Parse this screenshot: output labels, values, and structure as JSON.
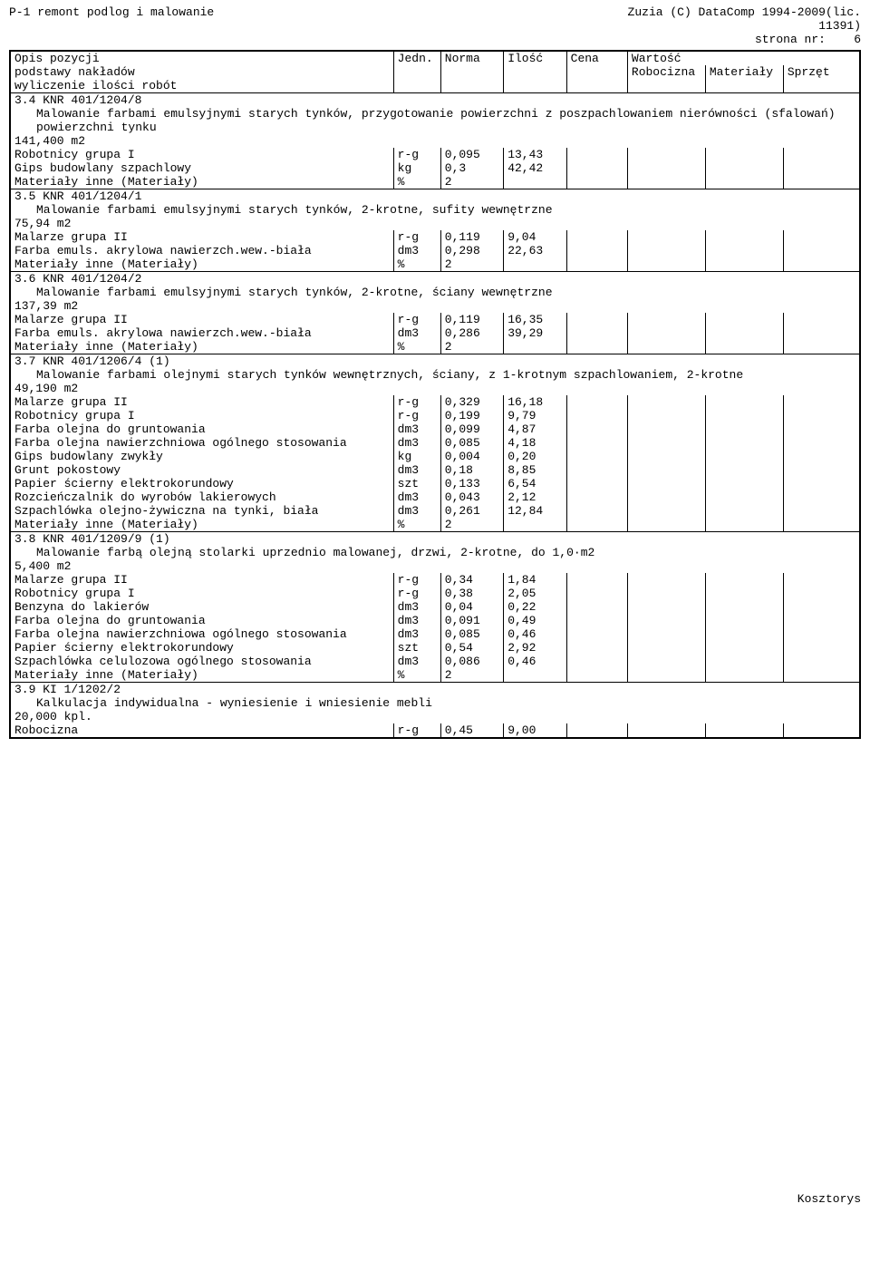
{
  "header": {
    "left": "P-1 remont podlog i malowanie",
    "right1": "Zuzia (C) DataComp 1994-2009(lic.",
    "right2": "11391)",
    "right3_label": "strona nr:",
    "right3_value": "6"
  },
  "columns": {
    "opis1": "Opis pozycji",
    "opis2": "podstawy nakładów",
    "opis3": "wyliczenie ilości robót",
    "jedn": "Jedn.",
    "norma": "Norma",
    "ilosc": "Ilość",
    "cena": "Cena",
    "wartosc": "Wartość",
    "robocizna": "Robocizna",
    "materialy": "Materiały",
    "sprzet": "Sprzęt"
  },
  "sections": [
    {
      "code": "3.4 KNR 401/1204/8",
      "desc": "Malowanie farbami emulsyjnymi starych tynków, przygotowanie powierzchni z poszpachlowaniem nierówności (sfalowań) powierzchni tynku",
      "area": "141,400 m2",
      "rows": [
        {
          "name": "Robotnicy grupa I",
          "unit": "r-g",
          "norma": "0,095",
          "ilosc": "13,43"
        },
        {
          "name": "Gips budowlany szpachlowy",
          "unit": "kg",
          "norma": "0,3",
          "ilosc": "42,42"
        },
        {
          "name": "Materiały inne (Materiały)",
          "unit": "%",
          "norma": "2",
          "ilosc": ""
        }
      ]
    },
    {
      "code": "3.5 KNR 401/1204/1",
      "desc": "Malowanie farbami emulsyjnymi starych tynków, 2-krotne, sufity wewnętrzne",
      "area": "75,94 m2",
      "rows": [
        {
          "name": "Malarze grupa II",
          "unit": "r-g",
          "norma": "0,119",
          "ilosc": "9,04"
        },
        {
          "name": "Farba emuls. akrylowa nawierzch.wew.-biała",
          "unit": "dm3",
          "norma": "0,298",
          "ilosc": "22,63"
        },
        {
          "name": "Materiały inne (Materiały)",
          "unit": "%",
          "norma": "2",
          "ilosc": ""
        }
      ]
    },
    {
      "code": "3.6 KNR 401/1204/2",
      "desc": "Malowanie farbami emulsyjnymi starych tynków, 2-krotne, ściany wewnętrzne",
      "area": "137,39 m2",
      "rows": [
        {
          "name": "Malarze grupa II",
          "unit": "r-g",
          "norma": "0,119",
          "ilosc": "16,35"
        },
        {
          "name": "Farba emuls. akrylowa nawierzch.wew.-biała",
          "unit": "dm3",
          "norma": "0,286",
          "ilosc": "39,29"
        },
        {
          "name": "Materiały inne (Materiały)",
          "unit": "%",
          "norma": "2",
          "ilosc": ""
        }
      ]
    },
    {
      "code": "3.7 KNR 401/1206/4 (1)",
      "desc": "Malowanie farbami olejnymi starych tynków wewnętrznych, ściany, z 1-krotnym szpachlowaniem, 2-krotne",
      "area": "49,190 m2",
      "rows": [
        {
          "name": "Malarze grupa II",
          "unit": "r-g",
          "norma": "0,329",
          "ilosc": "16,18"
        },
        {
          "name": "Robotnicy grupa I",
          "unit": "r-g",
          "norma": "0,199",
          "ilosc": "9,79"
        },
        {
          "name": "Farba olejna do gruntowania",
          "unit": "dm3",
          "norma": "0,099",
          "ilosc": "4,87"
        },
        {
          "name": "Farba olejna nawierzchniowa ogólnego stosowania",
          "unit": "dm3",
          "norma": "0,085",
          "ilosc": "4,18"
        },
        {
          "name": "Gips budowlany zwykły",
          "unit": "kg",
          "norma": "0,004",
          "ilosc": "0,20"
        },
        {
          "name": "Grunt pokostowy",
          "unit": "dm3",
          "norma": "0,18",
          "ilosc": "8,85"
        },
        {
          "name": "Papier ścierny elektrokorundowy",
          "unit": "szt",
          "norma": "0,133",
          "ilosc": "6,54"
        },
        {
          "name": "Rozcieńczalnik do wyrobów lakierowych",
          "unit": "dm3",
          "norma": "0,043",
          "ilosc": "2,12"
        },
        {
          "name": "Szpachlówka olejno-żywiczna na tynki, biała",
          "unit": "dm3",
          "norma": "0,261",
          "ilosc": "12,84"
        },
        {
          "name": "Materiały inne (Materiały)",
          "unit": "%",
          "norma": "2",
          "ilosc": ""
        }
      ]
    },
    {
      "code": "3.8 KNR 401/1209/9 (1)",
      "desc": "Malowanie farbą olejną stolarki uprzednio malowanej, drzwi,  2-krotne, do 1,0·m2",
      "area": "5,400 m2",
      "rows": [
        {
          "name": "Malarze grupa II",
          "unit": "r-g",
          "norma": "0,34",
          "ilosc": "1,84"
        },
        {
          "name": "Robotnicy grupa I",
          "unit": "r-g",
          "norma": "0,38",
          "ilosc": "2,05"
        },
        {
          "name": "Benzyna do lakierów",
          "unit": "dm3",
          "norma": "0,04",
          "ilosc": "0,22"
        },
        {
          "name": "Farba olejna do gruntowania",
          "unit": "dm3",
          "norma": "0,091",
          "ilosc": "0,49"
        },
        {
          "name": "Farba olejna nawierzchniowa ogólnego stosowania",
          "unit": "dm3",
          "norma": "0,085",
          "ilosc": "0,46"
        },
        {
          "name": "Papier ścierny elektrokorundowy",
          "unit": "szt",
          "norma": "0,54",
          "ilosc": "2,92"
        },
        {
          "name": "Szpachlówka celulozowa ogólnego stosowania",
          "unit": "dm3",
          "norma": "0,086",
          "ilosc": "0,46"
        },
        {
          "name": "Materiały inne (Materiały)",
          "unit": "%",
          "norma": "2",
          "ilosc": ""
        }
      ]
    },
    {
      "code": "3.9 KI 1/1202/2",
      "desc": "Kalkulacja indywidualna - wyniesienie i wniesienie mebli",
      "area": "20,000 kpl.",
      "rows": [
        {
          "name": "Robocizna",
          "unit": "r-g",
          "norma": "0,45",
          "ilosc": "9,00"
        }
      ]
    }
  ],
  "footer": "Kosztorys"
}
